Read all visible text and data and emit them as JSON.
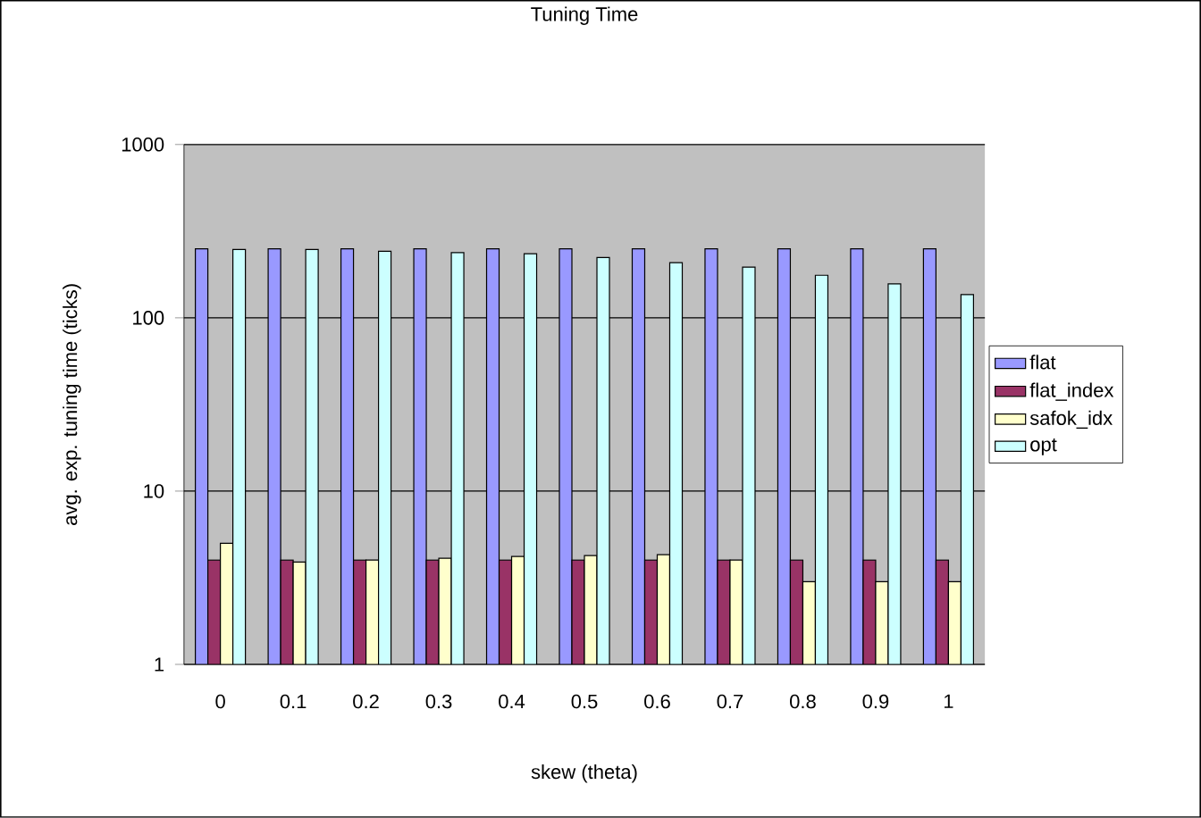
{
  "chart_data": {
    "type": "bar",
    "title": "Tuning Time",
    "xlabel": "skew (theta)",
    "ylabel": "avg. exp. tuning time (ticks)",
    "categories": [
      "0",
      "0.1",
      "0.2",
      "0.3",
      "0.4",
      "0.5",
      "0.6",
      "0.7",
      "0.8",
      "0.9",
      "1"
    ],
    "series": [
      {
        "name": "flat",
        "color": "#9999ff",
        "values": [
          250,
          250,
          250,
          250,
          250,
          250,
          250,
          250,
          250,
          250,
          250
        ]
      },
      {
        "name": "flat_index",
        "color": "#993366",
        "values": [
          4,
          4,
          4,
          4,
          4,
          4,
          4,
          4,
          4,
          4,
          4
        ]
      },
      {
        "name": "safok_idx",
        "color": "#ffffcc",
        "values": [
          5,
          3.9,
          4,
          4.1,
          4.2,
          4.25,
          4.3,
          4,
          3,
          3,
          3
        ]
      },
      {
        "name": "opt",
        "color": "#ccffff",
        "values": [
          248,
          248,
          242,
          238,
          234,
          223,
          208,
          196,
          176,
          157,
          136
        ]
      }
    ],
    "log": true,
    "ylim": [
      1,
      1000
    ],
    "yticks": [
      1,
      10,
      100,
      1000
    ],
    "grid": "y",
    "legend": "right"
  }
}
